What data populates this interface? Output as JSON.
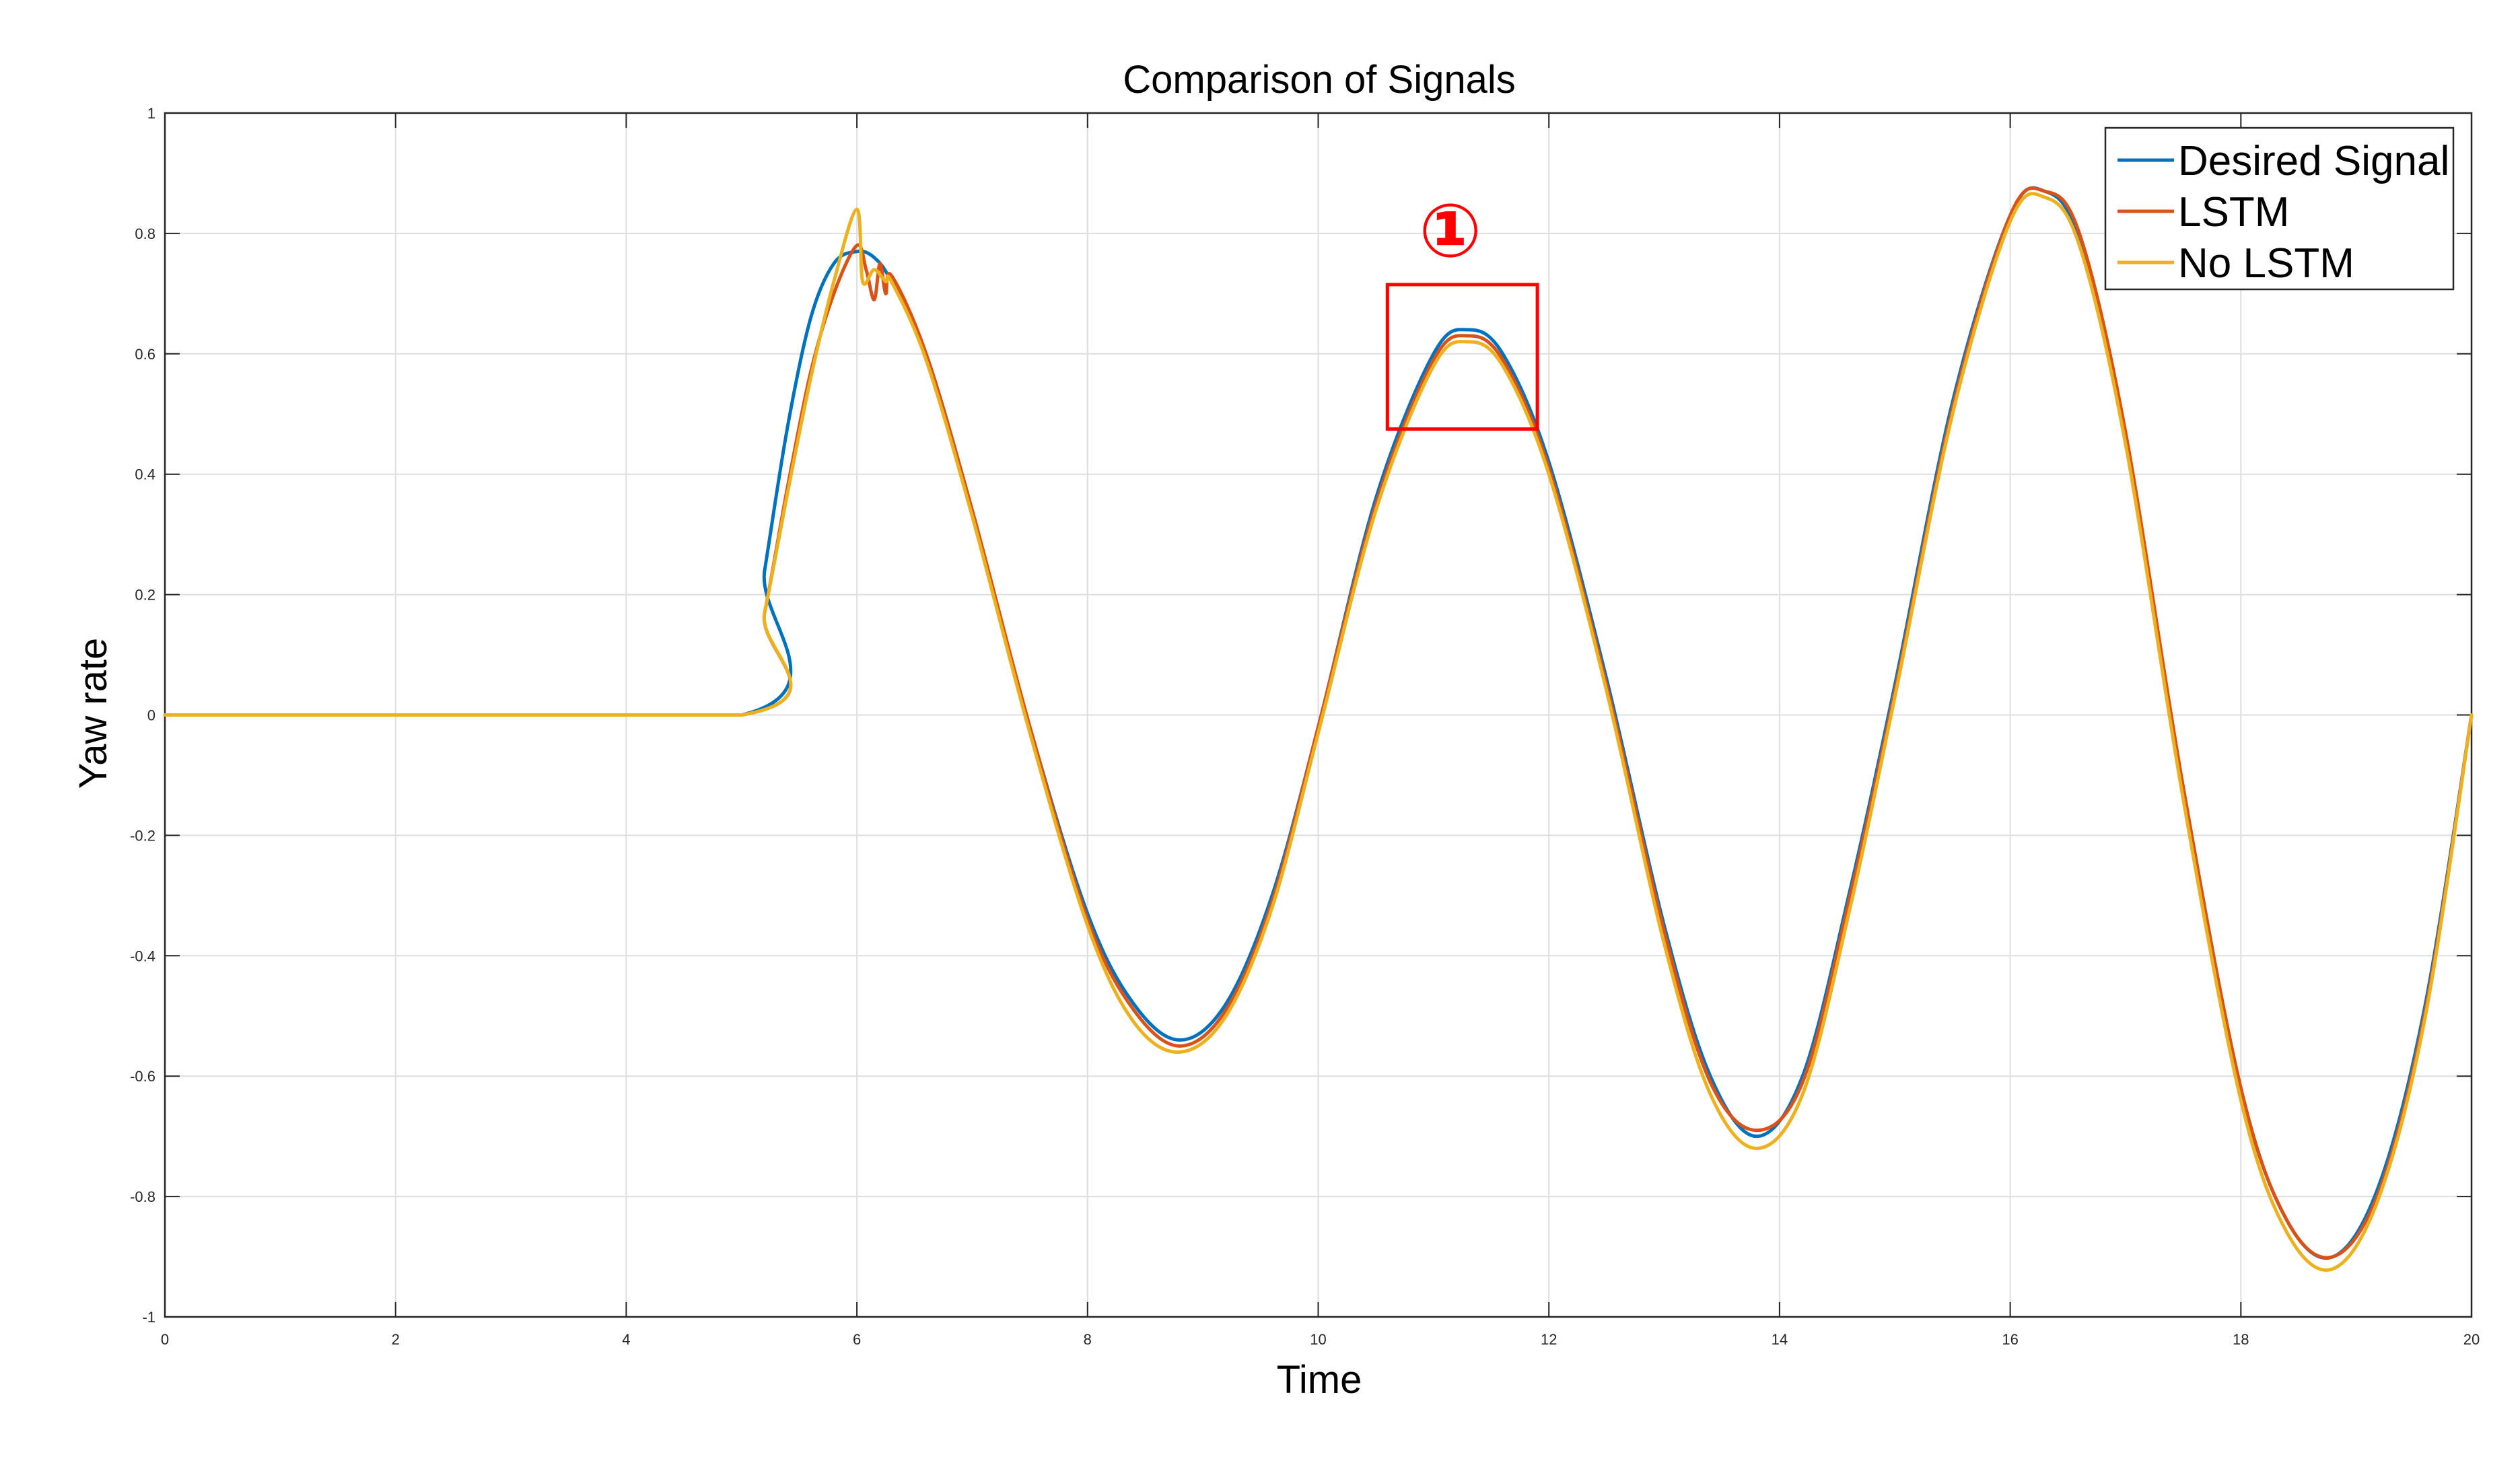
{
  "chart_data": {
    "type": "line",
    "title": "Comparison of Signals",
    "xlabel": "Time",
    "ylabel": "Yaw rate",
    "xlim": [
      0,
      20
    ],
    "ylim": [
      -1,
      1
    ],
    "xticks": [
      "0",
      "2",
      "4",
      "6",
      "8",
      "10",
      "12",
      "14",
      "16",
      "18",
      "20"
    ],
    "yticks": [
      "-1",
      "-0.8",
      "-0.6",
      "-0.4",
      "-0.2",
      "0",
      "0.2",
      "0.4",
      "0.6",
      "0.8",
      "1"
    ],
    "grid": true,
    "legend_position": "top-right",
    "annotation": {
      "label": "①",
      "box_x": [
        10.6,
        11.9
      ],
      "box_y": [
        0.475,
        0.715
      ],
      "color": "#ff0000"
    },
    "series": [
      {
        "name": "Desired Signal",
        "color": "#0072BD",
        "x": [
          0,
          5,
          5.2,
          5.4,
          5.6,
          5.8,
          6.0,
          6.15,
          6.3,
          6.6,
          7.0,
          7.5,
          8.0,
          8.4,
          8.8,
          9.2,
          9.6,
          10.0,
          10.5,
          11.0,
          11.3,
          11.6,
          12.0,
          12.5,
          13.0,
          13.4,
          13.8,
          14.2,
          14.6,
          15.0,
          15.5,
          16.0,
          16.3,
          16.6,
          17.0,
          17.5,
          18.0,
          18.4,
          18.8,
          19.2,
          19.6,
          20.0
        ],
        "y": [
          0,
          0,
          0.24,
          0.48,
          0.66,
          0.75,
          0.77,
          0.76,
          0.72,
          0.6,
          0.34,
          -0.02,
          -0.33,
          -0.48,
          -0.54,
          -0.48,
          -0.3,
          -0.02,
          0.36,
          0.6,
          0.64,
          0.6,
          0.42,
          0.06,
          -0.35,
          -0.6,
          -0.7,
          -0.6,
          -0.3,
          0.05,
          0.52,
          0.83,
          0.87,
          0.79,
          0.46,
          -0.12,
          -0.62,
          -0.84,
          -0.9,
          -0.78,
          -0.48,
          0
        ]
      },
      {
        "name": "LSTM",
        "color": "#D95319",
        "x": [
          0,
          5,
          5.2,
          5.4,
          5.6,
          5.8,
          6.0,
          6.08,
          6.15,
          6.2,
          6.25,
          6.3,
          6.6,
          7.0,
          7.5,
          8.0,
          8.4,
          8.8,
          9.2,
          9.6,
          10.0,
          10.5,
          11.0,
          11.3,
          11.6,
          12.0,
          12.5,
          13.0,
          13.4,
          13.8,
          14.2,
          14.6,
          15.0,
          15.5,
          16.0,
          16.3,
          16.6,
          17.0,
          17.5,
          18.0,
          18.4,
          18.8,
          19.2,
          19.6,
          20.0
        ],
        "y": [
          0,
          0,
          0.17,
          0.38,
          0.57,
          0.7,
          0.78,
          0.74,
          0.69,
          0.75,
          0.7,
          0.73,
          0.6,
          0.34,
          -0.02,
          -0.34,
          -0.49,
          -0.55,
          -0.49,
          -0.31,
          -0.02,
          0.35,
          0.59,
          0.63,
          0.59,
          0.41,
          0.05,
          -0.36,
          -0.61,
          -0.69,
          -0.61,
          -0.31,
          0.04,
          0.51,
          0.83,
          0.87,
          0.8,
          0.47,
          -0.12,
          -0.62,
          -0.84,
          -0.9,
          -0.79,
          -0.49,
          0
        ]
      },
      {
        "name": "No LSTM",
        "color": "#EDB120",
        "x": [
          0,
          5,
          5.2,
          5.4,
          5.6,
          5.8,
          6.0,
          6.05,
          6.15,
          6.25,
          6.3,
          6.6,
          7.0,
          7.5,
          8.0,
          8.4,
          8.8,
          9.2,
          9.6,
          10.0,
          10.5,
          11.0,
          11.3,
          11.6,
          12.0,
          12.5,
          13.0,
          13.4,
          13.8,
          14.2,
          14.6,
          15.0,
          15.5,
          16.0,
          16.3,
          16.6,
          17.0,
          17.5,
          18.0,
          18.4,
          18.8,
          19.2,
          19.6,
          20.0
        ],
        "y": [
          0,
          0,
          0.17,
          0.37,
          0.56,
          0.72,
          0.84,
          0.72,
          0.74,
          0.72,
          0.72,
          0.59,
          0.33,
          -0.03,
          -0.35,
          -0.51,
          -0.56,
          -0.5,
          -0.32,
          -0.03,
          0.34,
          0.58,
          0.62,
          0.58,
          0.4,
          0.04,
          -0.38,
          -0.63,
          -0.72,
          -0.63,
          -0.33,
          0.03,
          0.5,
          0.82,
          0.86,
          0.78,
          0.45,
          -0.14,
          -0.64,
          -0.86,
          -0.92,
          -0.8,
          -0.5,
          0
        ]
      }
    ]
  }
}
